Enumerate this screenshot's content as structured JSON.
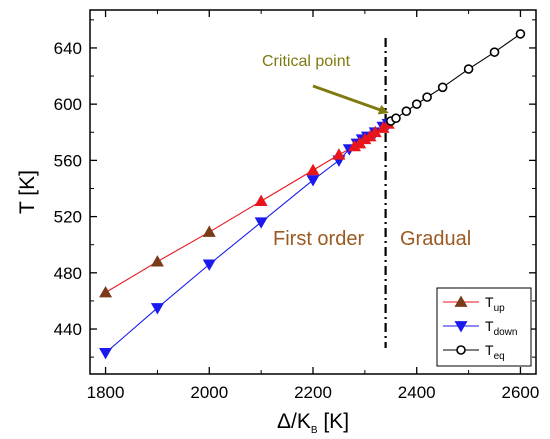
{
  "chart_data": {
    "type": "line",
    "xlabel": "Δ/K",
    "xlabel_sub": "B",
    "xlabel_unit": " [K]",
    "ylabel": "T [K]",
    "xlim": [
      1770,
      2630
    ],
    "ylim": [
      408,
      667
    ],
    "xticks": [
      1800,
      2000,
      2200,
      2400,
      2600
    ],
    "yticks": [
      440,
      480,
      520,
      560,
      600,
      640
    ],
    "series": [
      {
        "name": "T",
        "name_sub": "up",
        "marker": "triangle-up",
        "color": "#e8151b",
        "marker_colors": [
          "#7a3b1a",
          "#7a3b1a",
          "#7a3b1a",
          "#e8151b",
          "#e8151b",
          "#e8151b",
          "#e8151b",
          "#e8151b",
          "#e8151b",
          "#e8151b",
          "#e8151b",
          "#e8151b",
          "#e8151b"
        ],
        "x": [
          1800,
          1900,
          2000,
          2100,
          2200,
          2250,
          2280,
          2290,
          2300,
          2310,
          2320,
          2335,
          2345
        ],
        "y": [
          466,
          488,
          509,
          531,
          553,
          564,
          570,
          572,
          575,
          577,
          580,
          583,
          586
        ]
      },
      {
        "name": "T",
        "name_sub": "down",
        "marker": "triangle-down",
        "color": "#1a1aee",
        "x": [
          1800,
          1900,
          2000,
          2100,
          2200,
          2250,
          2270,
          2285,
          2295,
          2305,
          2320,
          2335,
          2345
        ],
        "y": [
          423,
          455,
          486,
          516,
          546,
          560,
          568,
          572,
          575,
          577,
          580,
          584,
          586
        ]
      },
      {
        "name": "T",
        "name_sub": "eq",
        "marker": "circle-open",
        "color": "#000000",
        "x": [
          2350,
          2360,
          2380,
          2400,
          2420,
          2450,
          2500,
          2550,
          2600
        ],
        "y": [
          588,
          590,
          595,
          600,
          605,
          612,
          625,
          637,
          650
        ]
      }
    ],
    "critical_line_x": 2340,
    "annotations": {
      "critical_point": "Critical point",
      "first_order": "First order",
      "gradual": "Gradual"
    },
    "colors": {
      "annotation": "#7e7a10",
      "region_text": "#9b5a22"
    },
    "legend_position": "bottom-right"
  }
}
